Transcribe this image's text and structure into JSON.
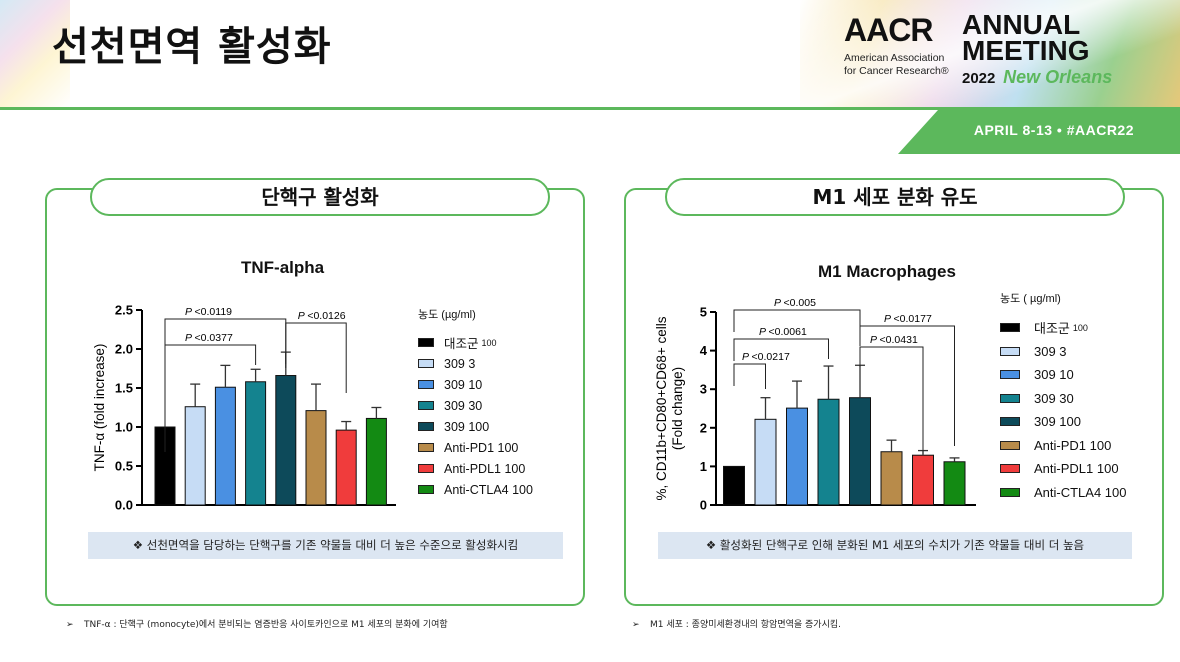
{
  "page": {
    "title": "선천면역 활성화",
    "date_banner": "APRIL 8-13 • #AACR22",
    "logo": {
      "aacr": "AACR",
      "org_line1": "American Association",
      "org_line2": "for Cancer Research®",
      "annual": "ANNUAL",
      "meeting": "MEETING",
      "year": "2022",
      "city": "New Orleans"
    }
  },
  "left_panel": {
    "heading": "단핵구 활성화",
    "chart_title": "TNF-alpha",
    "legend_title": "농도 (µg/ml)",
    "legend": [
      {
        "label": "대조군",
        "suffix": "100",
        "color": "#000000"
      },
      {
        "label": "309 3",
        "suffix": "",
        "color": "#c6dcf5"
      },
      {
        "label": "309 10",
        "suffix": "",
        "color": "#4a90e2"
      },
      {
        "label": "309 30",
        "suffix": "",
        "color": "#14838f"
      },
      {
        "label": "309 100",
        "suffix": "",
        "color": "#0d4a5a"
      },
      {
        "label": "Anti-PD1 100",
        "suffix": "",
        "color": "#b88b4a"
      },
      {
        "label": "Anti-PDL1 100",
        "suffix": "",
        "color": "#f03c3c"
      },
      {
        "label": "Anti-CTLA4 100",
        "suffix": "",
        "color": "#138a13"
      }
    ],
    "note": "❖   선천면역을 담당하는 단핵구를 기존 약물들 대비 더 높은 수준으로 활성화시킴",
    "footnote_marker": "➢",
    "footnote": "TNF-α : 단핵구 (monocyte)에서 분비되는 염증반응 사이토카인으로 M1 세포의 분화에 기여함"
  },
  "right_panel": {
    "heading": "M1 세포 분화 유도",
    "chart_title": "M1 Macrophages",
    "legend_title": "농도 ( µg/ml)",
    "legend": [
      {
        "label": "대조군",
        "suffix": "100",
        "color": "#000000"
      },
      {
        "label": "309 3",
        "suffix": "",
        "color": "#c6dcf5"
      },
      {
        "label": "309 10",
        "suffix": "",
        "color": "#4a90e2"
      },
      {
        "label": "309 30",
        "suffix": "",
        "color": "#14838f"
      },
      {
        "label": "309 100",
        "suffix": "",
        "color": "#0d4a5a"
      },
      {
        "label": "Anti-PD1 100",
        "suffix": "",
        "color": "#b88b4a"
      },
      {
        "label": "Anti-PDL1 100",
        "suffix": "",
        "color": "#f03c3c"
      },
      {
        "label": "Anti-CTLA4 100",
        "suffix": "",
        "color": "#138a13"
      }
    ],
    "note": "❖   활성화된 단핵구로 인해 분화된 M1 세포의 수치가 기존 약물들 대비 더 높음",
    "footnote_marker": "➢",
    "footnote": "M1 세포 : 종양미세환경내의 항암면역을 증가시킴."
  },
  "chart_data": [
    {
      "type": "bar",
      "title": "TNF-alpha",
      "ylabel": "TNF-α (fold increase)",
      "ylim": [
        0,
        2.5
      ],
      "yticks": [
        "0.0",
        "0.5",
        "1.0",
        "1.5",
        "2.0",
        "2.5"
      ],
      "categories": [
        "대조군 100",
        "309 3",
        "309 10",
        "309 30",
        "309 100",
        "Anti-PD1 100",
        "Anti-PDL1 100",
        "Anti-CTLA4 100"
      ],
      "values": [
        1.0,
        1.26,
        1.51,
        1.58,
        1.66,
        1.21,
        0.96,
        1.11
      ],
      "errors": [
        0.0,
        0.29,
        0.28,
        0.16,
        0.3,
        0.34,
        0.11,
        0.14
      ],
      "colors": [
        "#000000",
        "#c6dcf5",
        "#4a90e2",
        "#14838f",
        "#0d4a5a",
        "#b88b4a",
        "#f03c3c",
        "#138a13"
      ],
      "annotations": [
        {
          "from": 0,
          "to": 4,
          "text": "P <0.0119"
        },
        {
          "from": 0,
          "to": 3,
          "text": "P <0.0377"
        },
        {
          "from": 4,
          "to": 6,
          "text": "P <0.0126"
        }
      ]
    },
    {
      "type": "bar",
      "title": "M1 Macrophages",
      "ylabel": "%, CD11b+CD80+CD68+ cells (Fold change)",
      "ylim": [
        0,
        5
      ],
      "yticks": [
        "0",
        "1",
        "2",
        "3",
        "4",
        "5"
      ],
      "categories": [
        "대조군 100",
        "309 3",
        "309 10",
        "309 30",
        "309 100",
        "Anti-PD1 100",
        "Anti-PDL1 100",
        "Anti-CTLA4 100"
      ],
      "values": [
        1.0,
        2.22,
        2.51,
        2.74,
        2.78,
        1.38,
        1.29,
        1.12
      ],
      "errors": [
        0.0,
        0.56,
        0.7,
        0.86,
        0.84,
        0.3,
        0.12,
        0.1
      ],
      "colors": [
        "#000000",
        "#c6dcf5",
        "#4a90e2",
        "#14838f",
        "#0d4a5a",
        "#b88b4a",
        "#f03c3c",
        "#138a13"
      ],
      "annotations": [
        {
          "from": 0,
          "to": 4,
          "text": "P <0.005"
        },
        {
          "from": 0,
          "to": 3,
          "text": "P <0.0061"
        },
        {
          "from": 0,
          "to": 1,
          "text": "P <0.0217"
        },
        {
          "from": 4,
          "to": 7,
          "text": "P <0.0177"
        },
        {
          "from": 4,
          "to": 6,
          "text": "P <0.0431"
        }
      ]
    }
  ]
}
